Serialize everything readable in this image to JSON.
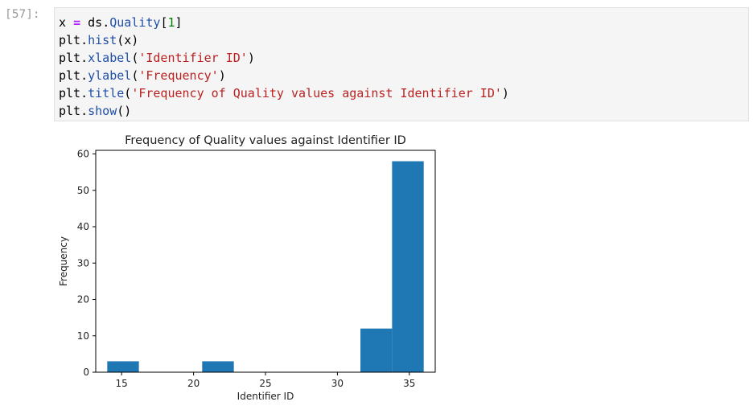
{
  "cell": {
    "prompt": "[57]:",
    "lines": [
      [
        {
          "t": "x ",
          "c": ""
        },
        {
          "t": "=",
          "c": "kw-op"
        },
        {
          "t": " ds",
          "c": ""
        },
        {
          "t": ".",
          "c": ""
        },
        {
          "t": "Quality",
          "c": "fn"
        },
        {
          "t": "[",
          "c": ""
        },
        {
          "t": "1",
          "c": "num"
        },
        {
          "t": "]",
          "c": ""
        }
      ],
      [
        {
          "t": "plt",
          "c": ""
        },
        {
          "t": ".",
          "c": ""
        },
        {
          "t": "hist",
          "c": "fn"
        },
        {
          "t": "(x)",
          "c": ""
        }
      ],
      [
        {
          "t": "plt",
          "c": ""
        },
        {
          "t": ".",
          "c": ""
        },
        {
          "t": "xlabel",
          "c": "fn"
        },
        {
          "t": "(",
          "c": ""
        },
        {
          "t": "'Identifier ID'",
          "c": "str"
        },
        {
          "t": ")",
          "c": ""
        }
      ],
      [
        {
          "t": "plt",
          "c": ""
        },
        {
          "t": ".",
          "c": ""
        },
        {
          "t": "ylabel",
          "c": "fn"
        },
        {
          "t": "(",
          "c": ""
        },
        {
          "t": "'Frequency'",
          "c": "str"
        },
        {
          "t": ")",
          "c": ""
        }
      ],
      [
        {
          "t": "plt",
          "c": ""
        },
        {
          "t": ".",
          "c": ""
        },
        {
          "t": "title",
          "c": "fn"
        },
        {
          "t": "(",
          "c": ""
        },
        {
          "t": "'Frequency of Quality values against Identifier ID'",
          "c": "str"
        },
        {
          "t": ")",
          "c": ""
        }
      ],
      [
        {
          "t": "plt",
          "c": ""
        },
        {
          "t": ".",
          "c": ""
        },
        {
          "t": "show",
          "c": "fn"
        },
        {
          "t": "()",
          "c": ""
        }
      ]
    ]
  },
  "chart_data": {
    "type": "bar",
    "title": "Frequency of Quality values against Identifier ID",
    "xlabel": "Identifier ID",
    "ylabel": "Frequency",
    "bin_edges": [
      14.0,
      16.2,
      18.4,
      20.6,
      22.8,
      25.0,
      27.2,
      29.4,
      31.6,
      33.8,
      36.0
    ],
    "values": [
      3,
      0,
      0,
      3,
      0,
      0,
      0,
      0,
      12,
      58
    ],
    "xlim": [
      13.2,
      36.8
    ],
    "ylim": [
      0,
      61
    ],
    "xticks": [
      15,
      20,
      25,
      30,
      35
    ],
    "yticks": [
      0,
      10,
      20,
      30,
      40,
      50,
      60
    ],
    "bar_color": "#1f77b4",
    "grid": false
  }
}
